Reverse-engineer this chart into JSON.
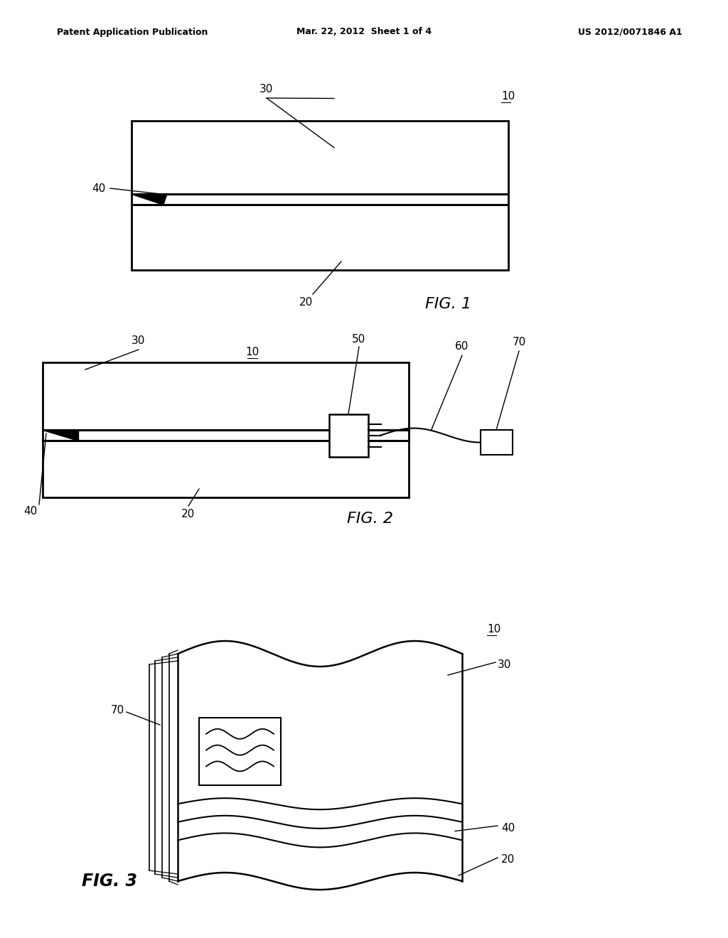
{
  "header_left": "Patent Application Publication",
  "header_mid": "Mar. 22, 2012  Sheet 1 of 4",
  "header_right": "US 2012/0071846 A1",
  "fig1_label": "FIG. 1",
  "fig2_label": "FIG. 2",
  "fig3_label": "FIG. 3",
  "bg_color": "#ffffff",
  "line_color": "#000000"
}
